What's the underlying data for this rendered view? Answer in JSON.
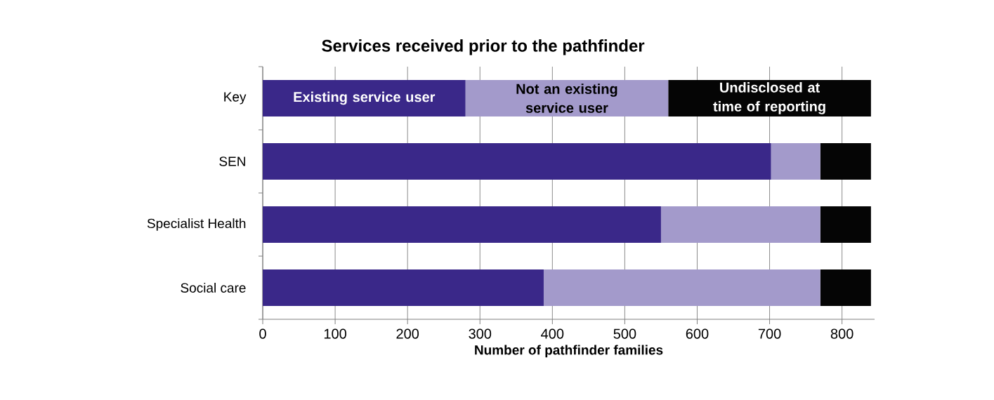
{
  "chart_data": {
    "type": "bar",
    "orientation": "horizontal",
    "stacked": true,
    "title": "Services received prior to the pathfinder",
    "xlabel": "Number of pathfinder families",
    "categories": [
      "Key",
      "SEN",
      "Specialist Health",
      "Social care"
    ],
    "series": [
      {
        "name": "Existing service user",
        "color": "#3a2889",
        "values": [
          280,
          702,
          550,
          388
        ]
      },
      {
        "name": "Not an existing service user",
        "color": "#a39acb",
        "values": [
          280,
          68,
          220,
          382
        ]
      },
      {
        "name": "Undisclosed at time of reporting",
        "color": "#050505",
        "values": [
          280,
          70,
          70,
          70
        ]
      }
    ],
    "xlim": [
      0,
      845
    ],
    "xticks": [
      0,
      100,
      200,
      300,
      400,
      500,
      600,
      700,
      800
    ],
    "grid": "x"
  }
}
